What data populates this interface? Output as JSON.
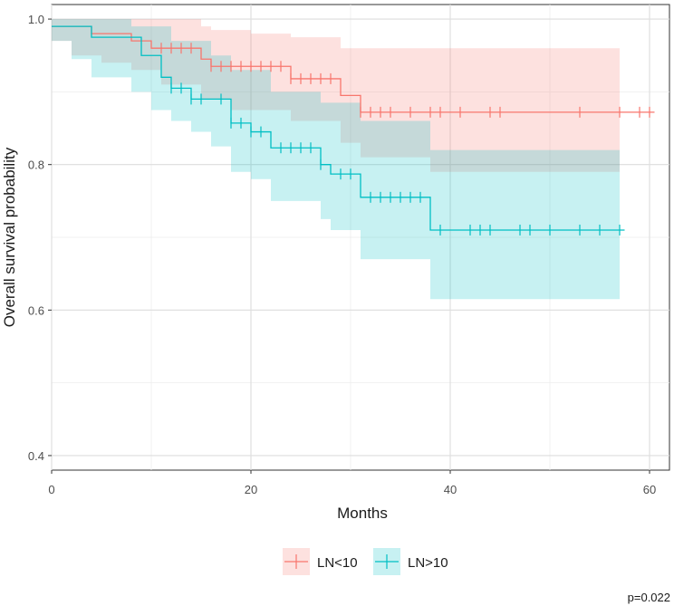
{
  "chart_data": {
    "type": "line",
    "xlabel": "Months",
    "ylabel": "Overall survival probability",
    "xlim": [
      0,
      62
    ],
    "ylim": [
      0.38,
      1.02
    ],
    "x_ticks": [
      0,
      20,
      40,
      60
    ],
    "y_ticks": [
      0.4,
      0.6,
      0.8,
      1.0
    ],
    "x_tick_labels": [
      "0",
      "20",
      "40",
      "60"
    ],
    "y_tick_labels": [
      "0.4",
      "0.6",
      "0.8",
      "1.0"
    ],
    "grid": true,
    "legend_position": "bottom",
    "annotation": "p=0.022",
    "series": [
      {
        "name": "LN<10",
        "color": "#F8766D",
        "band_color": "#F8766D",
        "steps": [
          [
            0,
            0.99
          ],
          [
            4,
            0.98
          ],
          [
            8,
            0.97
          ],
          [
            10,
            0.96
          ],
          [
            15,
            0.945
          ],
          [
            16,
            0.935
          ],
          [
            24,
            0.918
          ],
          [
            29,
            0.895
          ],
          [
            31,
            0.872
          ],
          [
            60.5,
            0.872
          ]
        ],
        "lower": [
          [
            0,
            0.97
          ],
          [
            2,
            0.95
          ],
          [
            5,
            0.94
          ],
          [
            8,
            0.93
          ],
          [
            11,
            0.91
          ],
          [
            15,
            0.89
          ],
          [
            18,
            0.875
          ],
          [
            24,
            0.86
          ],
          [
            29,
            0.83
          ],
          [
            31,
            0.81
          ],
          [
            38,
            0.79
          ],
          [
            57,
            0.79
          ]
        ],
        "upper": [
          [
            0,
            1.0
          ],
          [
            10,
            1.0
          ],
          [
            15,
            0.99
          ],
          [
            16,
            0.985
          ],
          [
            20,
            0.98
          ],
          [
            24,
            0.975
          ],
          [
            29,
            0.96
          ],
          [
            38,
            0.96
          ],
          [
            57,
            0.96
          ]
        ],
        "censor_x": [
          11,
          12,
          13,
          14,
          16,
          17,
          18,
          19,
          20,
          21,
          22,
          23,
          24,
          25,
          26,
          27,
          28,
          31,
          32,
          33,
          34,
          36,
          38,
          39,
          41,
          44,
          45,
          53,
          57,
          59,
          60
        ]
      },
      {
        "name": "LN>10",
        "color": "#00BFC4",
        "band_color": "#00BFC4",
        "steps": [
          [
            0,
            0.99
          ],
          [
            4,
            0.975
          ],
          [
            9,
            0.95
          ],
          [
            11,
            0.92
          ],
          [
            12,
            0.905
          ],
          [
            14,
            0.89
          ],
          [
            18,
            0.857
          ],
          [
            20,
            0.845
          ],
          [
            22,
            0.823
          ],
          [
            27,
            0.8
          ],
          [
            28,
            0.787
          ],
          [
            31,
            0.755
          ],
          [
            38,
            0.71
          ],
          [
            57.5,
            0.71
          ]
        ],
        "lower": [
          [
            0,
            0.97
          ],
          [
            2,
            0.945
          ],
          [
            4,
            0.92
          ],
          [
            8,
            0.9
          ],
          [
            10,
            0.875
          ],
          [
            12,
            0.86
          ],
          [
            14,
            0.845
          ],
          [
            16,
            0.825
          ],
          [
            18,
            0.79
          ],
          [
            20,
            0.78
          ],
          [
            22,
            0.75
          ],
          [
            27,
            0.725
          ],
          [
            28,
            0.71
          ],
          [
            31,
            0.67
          ],
          [
            38,
            0.615
          ],
          [
            57,
            0.615
          ]
        ],
        "upper": [
          [
            0,
            1.0
          ],
          [
            8,
            0.99
          ],
          [
            12,
            0.97
          ],
          [
            16,
            0.95
          ],
          [
            18,
            0.93
          ],
          [
            22,
            0.9
          ],
          [
            27,
            0.885
          ],
          [
            31,
            0.86
          ],
          [
            38,
            0.82
          ],
          [
            57,
            0.82
          ]
        ],
        "censor_x": [
          12,
          13,
          14,
          15,
          17,
          18,
          19,
          20,
          21,
          23,
          24,
          25,
          26,
          27,
          29,
          30,
          32,
          33,
          34,
          35,
          36,
          37,
          39,
          42,
          43,
          44,
          47,
          48,
          50,
          53,
          55,
          57
        ]
      }
    ]
  }
}
